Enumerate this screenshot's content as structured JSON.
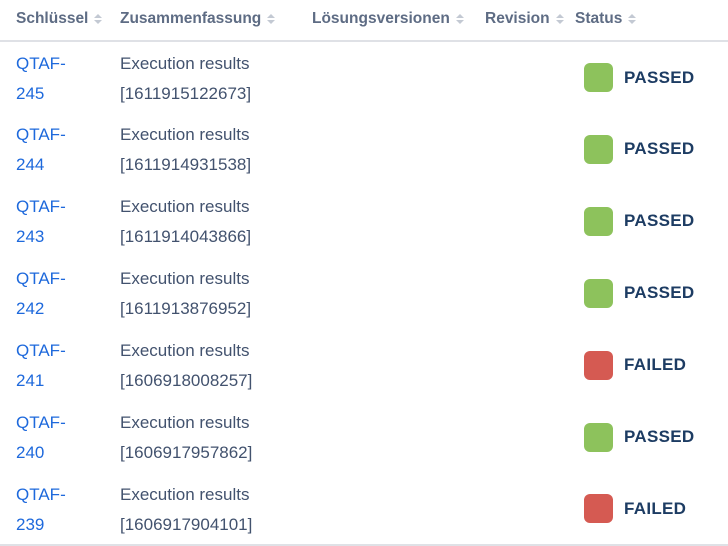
{
  "table": {
    "columns": [
      {
        "label": "Schlüssel"
      },
      {
        "label": "Zusammenfassung"
      },
      {
        "label": "Lösungsversionen"
      },
      {
        "label": "Revision"
      },
      {
        "label": "Status"
      }
    ],
    "rows": [
      {
        "key": "QTAF-245",
        "summary": "Execution results [1611915122673]",
        "fix_versions": "",
        "revision": "",
        "status": "PASSED"
      },
      {
        "key": "QTAF-244",
        "summary": "Execution results [1611914931538]",
        "fix_versions": "",
        "revision": "",
        "status": "PASSED"
      },
      {
        "key": "QTAF-243",
        "summary": "Execution results [1611914043866]",
        "fix_versions": "",
        "revision": "",
        "status": "PASSED"
      },
      {
        "key": "QTAF-242",
        "summary": "Execution results [1611913876952]",
        "fix_versions": "",
        "revision": "",
        "status": "PASSED"
      },
      {
        "key": "QTAF-241",
        "summary": "Execution results [1606918008257]",
        "fix_versions": "",
        "revision": "",
        "status": "FAILED"
      },
      {
        "key": "QTAF-240",
        "summary": "Execution results [1606917957862]",
        "fix_versions": "",
        "revision": "",
        "status": "PASSED"
      },
      {
        "key": "QTAF-239",
        "summary": "Execution results [1606917904101]",
        "fix_versions": "",
        "revision": "",
        "status": "FAILED"
      }
    ]
  },
  "status_colors": {
    "PASSED": "#8dc25c",
    "FAILED": "#d55a52"
  },
  "ui_colors": {
    "header_text": "#5e6c84",
    "cell_text": "#42526e",
    "link": "#1e69dc",
    "status_text": "#1d3c63",
    "border": "#dfe1e6",
    "sort_icon": "#c3c9d3"
  },
  "icons": {
    "sort": "sort-asc-desc-triangles"
  }
}
